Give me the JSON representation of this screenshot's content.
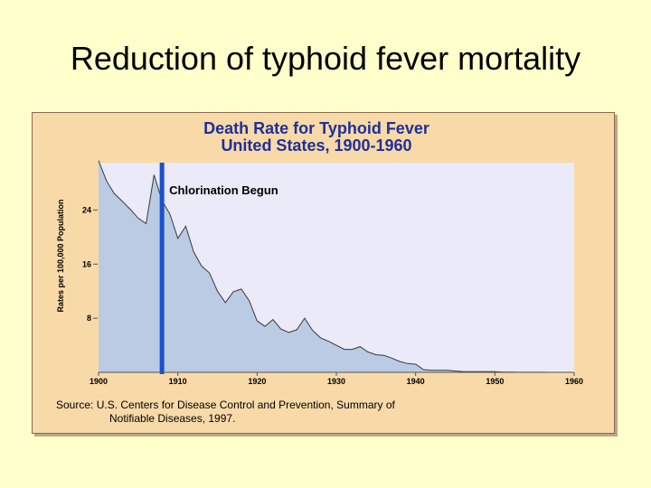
{
  "slide": {
    "title": "Reduction of typhoid fever mortality"
  },
  "colors": {
    "slide_background": "#FFFFCC",
    "figure_background": "#F8D9A8",
    "plot_background": "#EAEAF8",
    "area_fill": "#BACBE3",
    "area_line": "#3a3a3a",
    "event_line": "#1A4FD0",
    "title_text": "#1F2F9A"
  },
  "chart_data": {
    "type": "area",
    "title": "Death Rate for Typhoid Fever",
    "subtitle": "United States, 1900-1960",
    "ylabel": "Rates per 100,000 Population",
    "xlabel": "",
    "xlim": [
      1900,
      1960
    ],
    "ylim": [
      0,
      31
    ],
    "xticks": [
      1900,
      1910,
      1920,
      1930,
      1940,
      1950,
      1960
    ],
    "yticks": [
      8,
      16,
      24
    ],
    "grid": false,
    "series": [
      {
        "x": [
          1900,
          1901,
          1902,
          1903,
          1904,
          1905,
          1906,
          1907,
          1908,
          1909,
          1910,
          1911,
          1912,
          1913,
          1914,
          1915,
          1916,
          1917,
          1918,
          1919,
          1920,
          1921,
          1922,
          1923,
          1924,
          1925,
          1926,
          1927,
          1928,
          1929,
          1930,
          1931,
          1932,
          1933,
          1934,
          1935,
          1936,
          1937,
          1938,
          1939,
          1940,
          1941,
          1942,
          1943,
          1944,
          1945,
          1946,
          1947,
          1948,
          1949,
          1950,
          1951,
          1952,
          1953,
          1954,
          1955,
          1956,
          1957,
          1958,
          1959,
          1960
        ],
        "values": [
          31.3,
          28.3,
          26.4,
          25.3,
          24.1,
          22.8,
          22.0,
          29.2,
          25.4,
          23.4,
          19.8,
          21.6,
          17.8,
          15.7,
          14.7,
          12.0,
          10.3,
          11.9,
          12.3,
          10.6,
          7.6,
          6.8,
          7.8,
          6.4,
          5.9,
          6.3,
          8.0,
          6.2,
          5.1,
          4.6,
          4.0,
          3.4,
          3.4,
          3.8,
          3.0,
          2.6,
          2.5,
          2.1,
          1.6,
          1.3,
          1.2,
          0.4,
          0.3,
          0.3,
          0.3,
          0.2,
          0.1,
          0.1,
          0.1,
          0.1,
          0.1,
          0.04,
          0.03,
          0.02,
          0.02,
          0.01,
          0.01,
          0.0,
          0.0,
          0.0,
          0.0
        ]
      }
    ],
    "annotations": [
      {
        "text": "Chlorination Begun",
        "x": 1908
      }
    ],
    "source_lines": [
      "Source:  U.S. Centers for Disease Control and Prevention, Summary of",
      "Notifiable Diseases, 1997."
    ]
  }
}
